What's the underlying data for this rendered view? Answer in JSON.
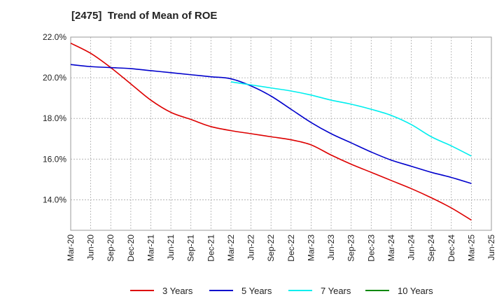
{
  "chart_data": {
    "type": "line",
    "title": "[2475]  Trend of Mean of ROE",
    "xlabel": "",
    "ylabel": "",
    "ylim": [
      12.5,
      22.0
    ],
    "y_ticks": [
      14.0,
      16.0,
      18.0,
      20.0,
      22.0
    ],
    "y_tick_labels": [
      "14.0%",
      "16.0%",
      "18.0%",
      "20.0%",
      "22.0%"
    ],
    "x": [
      "Mar-20",
      "Jun-20",
      "Sep-20",
      "Dec-20",
      "Mar-21",
      "Jun-21",
      "Sep-21",
      "Dec-21",
      "Mar-22",
      "Jun-22",
      "Sep-22",
      "Dec-22",
      "Mar-23",
      "Jun-23",
      "Sep-23",
      "Dec-23",
      "Mar-24",
      "Jun-24",
      "Sep-24",
      "Dec-24",
      "Mar-25",
      "Jun-25"
    ],
    "grid": true,
    "legend_position": "bottom",
    "series": [
      {
        "name": "3 Years",
        "color": "#dd0000",
        "values": [
          21.7,
          21.2,
          20.5,
          19.7,
          18.9,
          18.3,
          17.95,
          17.6,
          17.4,
          17.25,
          17.1,
          16.95,
          16.7,
          16.2,
          15.75,
          15.35,
          14.95,
          14.55,
          14.1,
          13.6,
          13.0,
          null
        ]
      },
      {
        "name": "5 Years",
        "color": "#0000cc",
        "values": [
          20.65,
          20.55,
          20.5,
          20.45,
          20.35,
          20.25,
          20.15,
          20.05,
          19.95,
          19.6,
          19.1,
          18.45,
          17.8,
          17.25,
          16.8,
          16.35,
          15.95,
          15.65,
          15.35,
          15.1,
          14.8,
          null
        ]
      },
      {
        "name": "7 Years",
        "color": "#00eeee",
        "values": [
          null,
          null,
          null,
          null,
          null,
          null,
          null,
          null,
          19.8,
          19.65,
          19.5,
          19.35,
          19.15,
          18.9,
          18.7,
          18.45,
          18.15,
          17.7,
          17.1,
          16.65,
          16.15,
          null
        ]
      },
      {
        "name": "10 Years",
        "color": "#008800",
        "values": [
          null,
          null,
          null,
          null,
          null,
          null,
          null,
          null,
          null,
          null,
          null,
          null,
          null,
          null,
          null,
          null,
          null,
          null,
          null,
          null,
          null,
          null
        ]
      }
    ]
  }
}
